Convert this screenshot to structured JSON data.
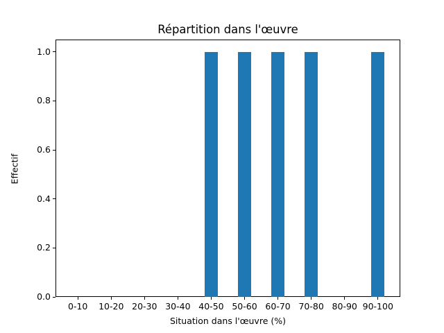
{
  "chart_data": {
    "type": "bar",
    "title": "Répartition dans l'œuvre",
    "xlabel": "Situation dans l'œuvre (%)",
    "ylabel": "Effectif",
    "categories": [
      "0-10",
      "10-20",
      "20-30",
      "30-40",
      "40-50",
      "50-60",
      "60-70",
      "70-80",
      "80-90",
      "90-100"
    ],
    "values": [
      0,
      0,
      0,
      0,
      1,
      1,
      1,
      1,
      0,
      1
    ],
    "ytick_values": [
      0.0,
      0.2,
      0.4,
      0.6,
      0.8,
      1.0
    ],
    "ytick_labels": [
      "0.0",
      "0.2",
      "0.4",
      "0.6",
      "0.8",
      "1.0"
    ],
    "ylim": [
      0,
      1.05
    ],
    "x_margin": 0.67,
    "bar_width_fraction": 0.4,
    "bar_color": "#1f77b4",
    "grid": false,
    "legend": null
  }
}
